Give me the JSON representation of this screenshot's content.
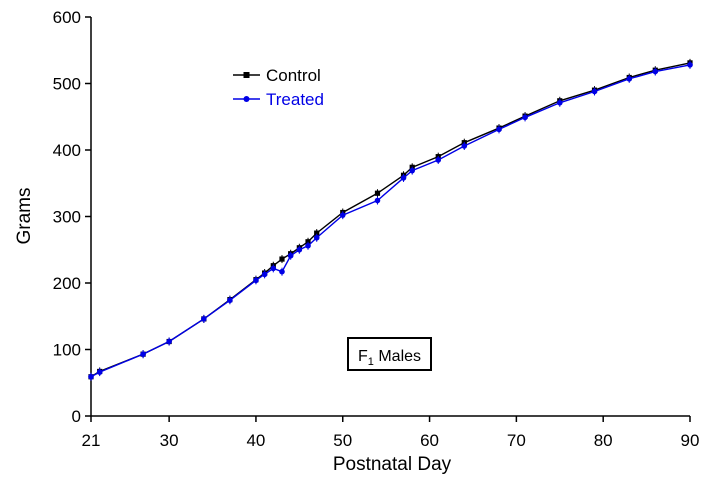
{
  "chart_data": {
    "type": "line",
    "title": "",
    "xlabel": "Postnatal Day",
    "ylabel": "Grams",
    "xlim": [
      21,
      90
    ],
    "ylim": [
      0,
      600
    ],
    "xticks": [
      21,
      30,
      40,
      50,
      60,
      70,
      80,
      90
    ],
    "yticks": [
      0,
      100,
      200,
      300,
      400,
      500,
      600
    ],
    "grid": false,
    "legend_position": "top-left",
    "annotation": {
      "text_main": "F",
      "text_sub": "1",
      "text_rest": " Males"
    },
    "series": [
      {
        "name": "Control",
        "color": "#000000",
        "marker": "square",
        "x": [
          21,
          22,
          27,
          30,
          34,
          37,
          40,
          41,
          42,
          43,
          44,
          45,
          46,
          47,
          50,
          54,
          57,
          58,
          61,
          64,
          68,
          71,
          75,
          79,
          83,
          86,
          90
        ],
        "y": [
          59,
          67,
          93,
          112,
          146,
          175,
          205,
          215,
          226,
          236,
          244,
          253,
          262,
          275,
          306,
          335,
          362,
          374,
          390,
          411,
          433,
          451,
          474,
          490,
          509,
          520,
          531
        ]
      },
      {
        "name": "Treated",
        "color": "#0000e6",
        "marker": "circle",
        "x": [
          21,
          22,
          27,
          30,
          34,
          37,
          40,
          41,
          42,
          43,
          44,
          45,
          46,
          47,
          50,
          54,
          57,
          58,
          61,
          64,
          68,
          71,
          75,
          79,
          83,
          86,
          90
        ],
        "y": [
          59,
          66,
          93,
          112,
          146,
          174,
          204,
          213,
          222,
          217,
          241,
          250,
          256,
          268,
          302,
          324,
          358,
          369,
          385,
          406,
          431,
          449,
          471,
          488,
          507,
          518,
          528
        ]
      }
    ]
  }
}
